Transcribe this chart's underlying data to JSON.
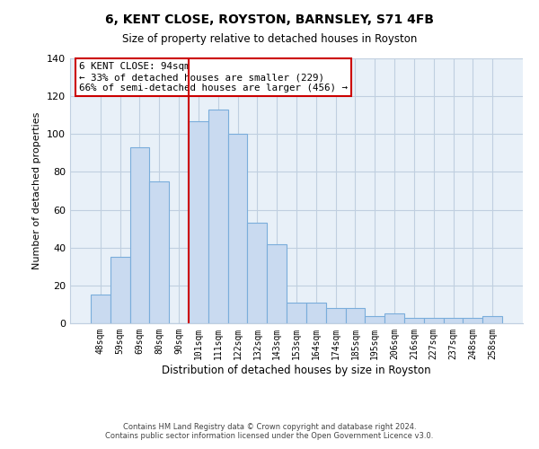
{
  "title": "6, KENT CLOSE, ROYSTON, BARNSLEY, S71 4FB",
  "subtitle": "Size of property relative to detached houses in Royston",
  "xlabel": "Distribution of detached houses by size in Royston",
  "ylabel": "Number of detached properties",
  "bar_labels": [
    "48sqm",
    "59sqm",
    "69sqm",
    "80sqm",
    "90sqm",
    "101sqm",
    "111sqm",
    "122sqm",
    "132sqm",
    "143sqm",
    "153sqm",
    "164sqm",
    "174sqm",
    "185sqm",
    "195sqm",
    "206sqm",
    "216sqm",
    "227sqm",
    "237sqm",
    "248sqm",
    "258sqm"
  ],
  "bar_values": [
    15,
    35,
    93,
    75,
    0,
    107,
    113,
    100,
    53,
    42,
    11,
    11,
    8,
    8,
    4,
    5,
    3,
    3,
    3,
    3,
    4
  ],
  "bar_color": "#c9daf0",
  "bar_edge_color": "#7aaddb",
  "vline_x": 4.5,
  "vline_color": "#cc0000",
  "annotation_text": "6 KENT CLOSE: 94sqm\n← 33% of detached houses are smaller (229)\n66% of semi-detached houses are larger (456) →",
  "annotation_box_color": "#ffffff",
  "annotation_box_edge_color": "#cc0000",
  "ylim": [
    0,
    140
  ],
  "yticks": [
    0,
    20,
    40,
    60,
    80,
    100,
    120,
    140
  ],
  "footer_text": "Contains HM Land Registry data © Crown copyright and database right 2024.\nContains public sector information licensed under the Open Government Licence v3.0.",
  "background_color": "#ffffff",
  "plot_bg_color": "#e8f0f8",
  "grid_color": "#c0cfe0"
}
